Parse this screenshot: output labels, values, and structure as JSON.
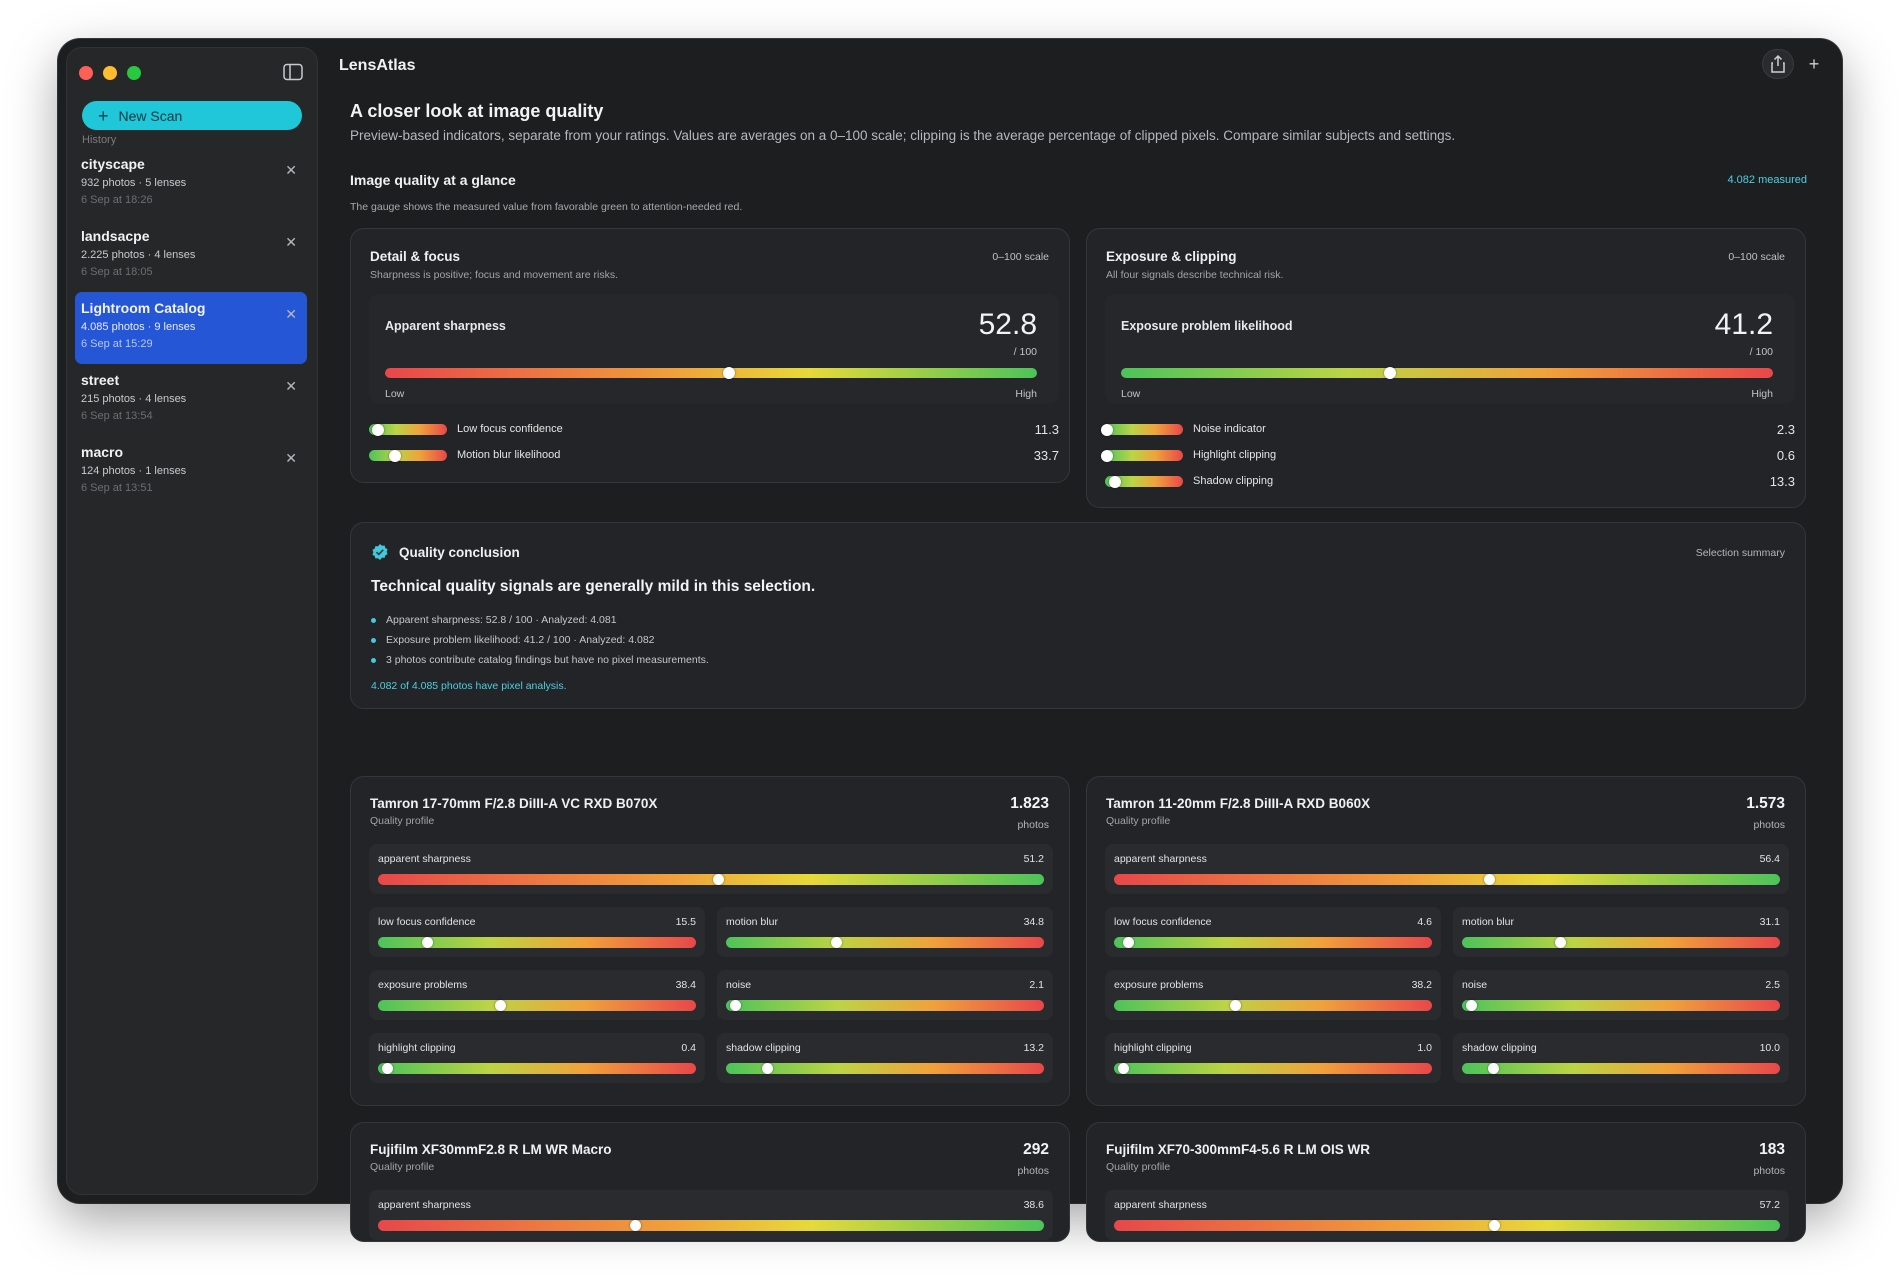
{
  "app": {
    "title": "LensAtlas"
  },
  "sidebar": {
    "new_scan": "New Scan",
    "history_label": "History",
    "items": [
      {
        "name": "cityscape",
        "meta": "932 photos · 5 lenses",
        "date": "6 Sep at 18:26",
        "active": false
      },
      {
        "name": "landsacpe",
        "meta": "2.225 photos · 4 lenses",
        "date": "6 Sep at 18:05",
        "active": false
      },
      {
        "name": "Lightroom Catalog",
        "meta": "4.085 photos · 9 lenses",
        "date": "6 Sep at 15:29",
        "active": true
      },
      {
        "name": "street",
        "meta": "215 photos · 4 lenses",
        "date": "6 Sep at 13:54",
        "active": false
      },
      {
        "name": "macro",
        "meta": "124 photos · 1 lenses",
        "date": "6 Sep at 13:51",
        "active": false
      }
    ]
  },
  "page": {
    "title": "A closer look at image quality",
    "subtitle": "Preview-based indicators, separate from your ratings. Values are averages on a 0–100 scale; clipping is the average percentage of clipped pixels. Compare similar subjects and settings."
  },
  "glance": {
    "title": "Image quality at a glance",
    "measured": "4.082 measured",
    "desc": "The gauge shows the measured value from favorable green to attention-needed red."
  },
  "detail_card": {
    "title": "Detail & focus",
    "sub": "Sharpness is positive; focus and movement are risks.",
    "scale": "0–100 scale",
    "gauge": {
      "label": "Apparent sharpness",
      "value": "52.8",
      "value_num": 52.8,
      "of": "/ 100",
      "low": "Low",
      "high": "High"
    },
    "minis": [
      {
        "label": "Low focus confidence",
        "value": "11.3",
        "value_num": 11.3
      },
      {
        "label": "Motion blur likelihood",
        "value": "33.7",
        "value_num": 33.7
      }
    ]
  },
  "exposure_card": {
    "title": "Exposure & clipping",
    "sub": "All four signals describe technical risk.",
    "scale": "0–100 scale",
    "gauge": {
      "label": "Exposure problem likelihood",
      "value": "41.2",
      "value_num": 41.2,
      "of": "/ 100",
      "low": "Low",
      "high": "High"
    },
    "minis": [
      {
        "label": "Noise indicator",
        "value": "2.3",
        "value_num": 2.3
      },
      {
        "label": "Highlight clipping",
        "value": "0.6",
        "value_num": 0.6
      },
      {
        "label": "Shadow clipping",
        "value": "13.3",
        "value_num": 13.3
      }
    ]
  },
  "conclusion": {
    "title": "Quality conclusion",
    "badge": "Selection summary",
    "headline": "Technical quality signals are generally mild in this selection.",
    "bullets": [
      "Apparent sharpness: 52.8 / 100 · Analyzed: 4.081",
      "Exposure problem likelihood: 41.2 / 100 · Analyzed: 4.082",
      "3 photos contribute catalog findings but have no pixel measurements."
    ],
    "link": "4.082 of 4.085 photos have pixel analysis."
  },
  "lenses": [
    {
      "name": "Tamron 17-70mm F/2.8 DiIII-A VC RXD B070X",
      "sub": "Quality profile",
      "count": "1.823",
      "unit": "photos",
      "sharpness": {
        "label": "apparent sharpness",
        "value": "51.2",
        "value_num": 51.2
      },
      "metrics": [
        {
          "label": "low focus confidence",
          "value": "15.5",
          "value_num": 15.5
        },
        {
          "label": "motion blur",
          "value": "34.8",
          "value_num": 34.8
        },
        {
          "label": "exposure problems",
          "value": "38.4",
          "value_num": 38.4
        },
        {
          "label": "noise",
          "value": "2.1",
          "value_num": 2.1
        },
        {
          "label": "highlight clipping",
          "value": "0.4",
          "value_num": 0.4
        },
        {
          "label": "shadow clipping",
          "value": "13.2",
          "value_num": 13.2
        }
      ]
    },
    {
      "name": "Tamron 11-20mm F/2.8 DiIII-A RXD B060X",
      "sub": "Quality profile",
      "count": "1.573",
      "unit": "photos",
      "sharpness": {
        "label": "apparent sharpness",
        "value": "56.4",
        "value_num": 56.4
      },
      "metrics": [
        {
          "label": "low focus confidence",
          "value": "4.6",
          "value_num": 4.6
        },
        {
          "label": "motion blur",
          "value": "31.1",
          "value_num": 31.1
        },
        {
          "label": "exposure problems",
          "value": "38.2",
          "value_num": 38.2
        },
        {
          "label": "noise",
          "value": "2.5",
          "value_num": 2.5
        },
        {
          "label": "highlight clipping",
          "value": "1.0",
          "value_num": 1.0
        },
        {
          "label": "shadow clipping",
          "value": "10.0",
          "value_num": 10.0
        }
      ]
    },
    {
      "name": "Fujifilm XF30mmF2.8 R LM WR Macro",
      "sub": "Quality profile",
      "count": "292",
      "unit": "photos",
      "sharpness": {
        "label": "apparent sharpness",
        "value": "38.6",
        "value_num": 38.6
      },
      "metrics": []
    },
    {
      "name": "Fujifilm XF70-300mmF4-5.6 R LM OIS WR",
      "sub": "Quality profile",
      "count": "183",
      "unit": "photos",
      "sharpness": {
        "label": "apparent sharpness",
        "value": "57.2",
        "value_num": 57.2
      },
      "metrics": []
    }
  ],
  "colors": {
    "accent": "#1fc7d9",
    "selection": "#2456d6",
    "good": "#4dc35a",
    "bad": "#e8474a"
  }
}
